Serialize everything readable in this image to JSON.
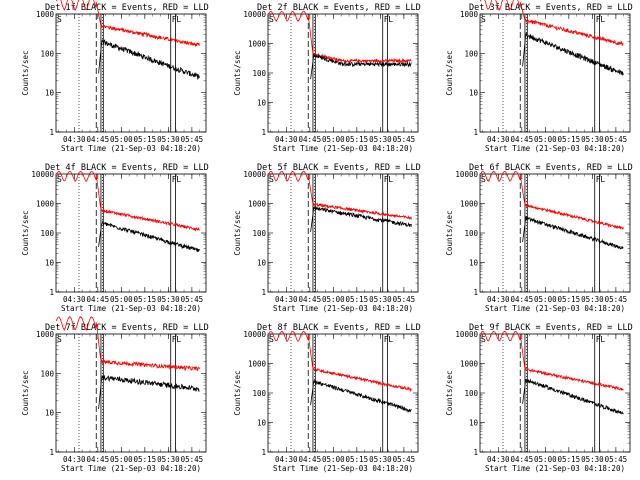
{
  "chart_data": {
    "type": "line",
    "y_scale": "log",
    "colors": {
      "events": "#000000",
      "lld": "#ff0000"
    },
    "common": {
      "xlabel": "Start Time (21-Sep-03 04:18:20)",
      "ylabel": "Counts/sec",
      "xtick_labels": [
        "04:30",
        "04:45",
        "05:00",
        "05:15",
        "05:30",
        "05:45"
      ],
      "x_range": [
        "04:18:20",
        "05:54:00"
      ],
      "dotted_vlines": [
        "04:33",
        "04:48"
      ],
      "dashed_vlines": [
        "04:44"
      ],
      "solid_vlines": [
        "04:47",
        "04:48:30",
        "05:31:30",
        "05:34:30"
      ],
      "flags": [
        {
          "text": "S",
          "at": "04:18:20"
        },
        {
          "text": "F",
          "at": "05:31:30"
        },
        {
          "text": "L",
          "at": "05:34:30"
        }
      ],
      "rise_time": "04:45",
      "end_time": "05:50"
    },
    "panels": [
      {
        "title": "Det 1f BLACK = Events, RED = LLD",
        "y_ticks": [
          "1",
          "10",
          "100",
          "1000"
        ],
        "ylim": [
          1,
          1000
        ],
        "lld": {
          "pre": 2000,
          "start": 500,
          "end": 160,
          "knee": 0
        },
        "events": {
          "start": 200,
          "end": 25,
          "knee": 0
        }
      },
      {
        "title": "Det 2f BLACK = Events, RED = LLD",
        "y_ticks": [
          "1",
          "10",
          "100",
          "1000",
          "10000"
        ],
        "ylim": [
          1,
          10000
        ],
        "lld": {
          "pre": 9000,
          "start": 450,
          "end": 260,
          "knee": 0.3
        },
        "events": {
          "start": 400,
          "end": 200,
          "knee": 0.3
        }
      },
      {
        "title": "Det 3f BLACK = Events, RED = LLD",
        "y_ticks": [
          "1",
          "10",
          "100",
          "1000"
        ],
        "ylim": [
          1,
          1000
        ],
        "lld": {
          "pre": 2000,
          "start": 700,
          "end": 170,
          "knee": 0
        },
        "events": {
          "start": 300,
          "end": 30,
          "knee": 0
        }
      },
      {
        "title": "Det 4f BLACK = Events, RED = LLD",
        "y_ticks": [
          "1",
          "10",
          "100",
          "1000",
          "10000"
        ],
        "ylim": [
          1,
          10000
        ],
        "lld": {
          "pre": 9000,
          "start": 600,
          "end": 130,
          "knee": 0
        },
        "events": {
          "start": 220,
          "end": 25,
          "knee": 0
        }
      },
      {
        "title": "Det 5f BLACK = Events, RED = LLD",
        "y_ticks": [
          "1",
          "10",
          "100",
          "1000",
          "10000"
        ],
        "ylim": [
          1,
          10000
        ],
        "lld": {
          "pre": 9000,
          "start": 950,
          "end": 320,
          "knee": 0
        },
        "events": {
          "start": 700,
          "end": 180,
          "knee": 0
        }
      },
      {
        "title": "Det 6f BLACK = Events, RED = LLD",
        "y_ticks": [
          "1",
          "10",
          "100",
          "1000",
          "10000"
        ],
        "ylim": [
          1,
          10000
        ],
        "lld": {
          "pre": 9000,
          "start": 900,
          "end": 140,
          "knee": 0
        },
        "events": {
          "start": 320,
          "end": 30,
          "knee": 0
        }
      },
      {
        "title": "Det 7f BLACK = Events, RED = LLD",
        "y_ticks": [
          "1",
          "10",
          "100",
          "1000"
        ],
        "ylim": [
          1,
          1000
        ],
        "lld": {
          "pre": 2000,
          "start": 200,
          "end": 130,
          "knee": 0
        },
        "events": {
          "start": 80,
          "end": 40,
          "knee": 0
        }
      },
      {
        "title": "Det 8f BLACK = Events, RED = LLD",
        "y_ticks": [
          "1",
          "10",
          "100",
          "1000",
          "10000"
        ],
        "ylim": [
          1,
          10000
        ],
        "lld": {
          "pre": 9000,
          "start": 650,
          "end": 130,
          "knee": 0
        },
        "events": {
          "start": 250,
          "end": 25,
          "knee": 0
        }
      },
      {
        "title": "Det 9f BLACK = Events, RED = LLD",
        "y_ticks": [
          "1",
          "10",
          "100",
          "1000",
          "10000"
        ],
        "ylim": [
          1,
          10000
        ],
        "lld": {
          "pre": 9000,
          "start": 650,
          "end": 130,
          "knee": 0
        },
        "events": {
          "start": 280,
          "end": 20,
          "knee": 0
        }
      }
    ]
  }
}
